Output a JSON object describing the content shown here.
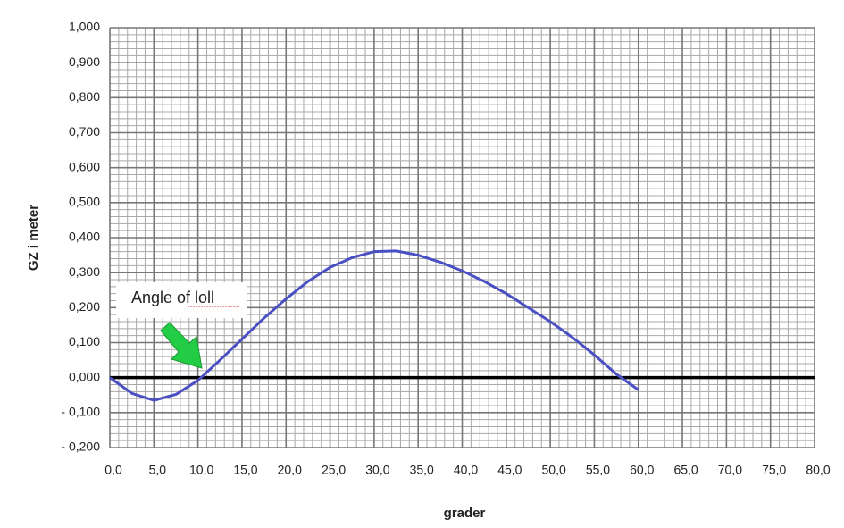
{
  "chart_data": {
    "type": "line",
    "x_label": "grader",
    "y_label": "GZ i meter",
    "annotation": "Angle of loll",
    "x": [
      0,
      2.5,
      5,
      7.5,
      10,
      12.5,
      15,
      17.5,
      20,
      22.5,
      25,
      27.5,
      30,
      32.5,
      35,
      37.5,
      40,
      42.5,
      45,
      47.5,
      50,
      52.5,
      55,
      57.5,
      60
    ],
    "series": [
      {
        "color": "#4a4fc4",
        "values": [
          0,
          -0.045,
          -0.065,
          -0.048,
          -0.008,
          0.05,
          0.11,
          0.17,
          0.225,
          0.275,
          0.315,
          0.343,
          0.36,
          0.362,
          0.35,
          0.33,
          0.305,
          0.275,
          0.24,
          0.2,
          0.16,
          0.115,
          0.065,
          0.01,
          -0.035
        ]
      }
    ],
    "xlim": [
      0,
      80
    ],
    "xticks": [
      {
        "value": 0,
        "label": "0,0"
      },
      {
        "value": 5,
        "label": "5,0"
      },
      {
        "value": 10,
        "label": "10,0"
      },
      {
        "value": 15,
        "label": "15,0"
      },
      {
        "value": 20,
        "label": "20,0"
      },
      {
        "value": 25,
        "label": "25,0"
      },
      {
        "value": 30,
        "label": "30,0"
      },
      {
        "value": 35,
        "label": "35,0"
      },
      {
        "value": 40,
        "label": "40,0"
      },
      {
        "value": 45,
        "label": "45,0"
      },
      {
        "value": 50,
        "label": "50,0"
      },
      {
        "value": 55,
        "label": "55,0"
      },
      {
        "value": 60,
        "label": "60,0"
      },
      {
        "value": 65,
        "label": "65,0"
      },
      {
        "value": 70,
        "label": "70,0"
      },
      {
        "value": 75,
        "label": "75,0"
      },
      {
        "value": 80,
        "label": "80,0"
      }
    ],
    "ylim": [
      -0.2,
      1.0
    ],
    "yticks": [
      {
        "value": -0.2,
        "label": "- 0,200"
      },
      {
        "value": -0.1,
        "label": "- 0,100"
      },
      {
        "value": 0,
        "label": "0,000"
      },
      {
        "value": 0.1,
        "label": "0,100"
      },
      {
        "value": 0.2,
        "label": "0,200"
      },
      {
        "value": 0.3,
        "label": "0,300"
      },
      {
        "value": 0.4,
        "label": "0,400"
      },
      {
        "value": 0.5,
        "label": "0,500"
      },
      {
        "value": 0.6,
        "label": "0,600"
      },
      {
        "value": 0.7,
        "label": "0,700"
      },
      {
        "value": 0.8,
        "label": "0,800"
      },
      {
        "value": 0.9,
        "label": "0,900"
      },
      {
        "value": 1.0,
        "label": "1,000"
      }
    ],
    "grid": true
  }
}
